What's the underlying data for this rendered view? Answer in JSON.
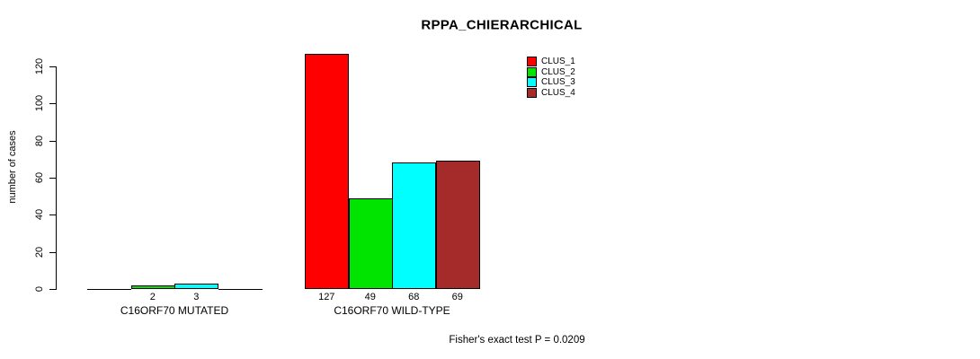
{
  "chart_data": {
    "type": "bar",
    "title": "RPPA_CHIERARCHICAL",
    "ylabel": "number of cases",
    "xlabel": "",
    "ylim": [
      0,
      130
    ],
    "yticks": [
      0,
      20,
      40,
      60,
      80,
      100,
      120
    ],
    "grid": false,
    "legend_position": "top-right",
    "categories": [
      "C16ORF70 MUTATED",
      "C16ORF70 WILD-TYPE"
    ],
    "series": [
      {
        "name": "CLUS_1",
        "color": "#ff0000",
        "values": [
          0,
          127
        ]
      },
      {
        "name": "CLUS_2",
        "color": "#00e400",
        "values": [
          2,
          49
        ]
      },
      {
        "name": "CLUS_3",
        "color": "#00ffff",
        "values": [
          3,
          68
        ]
      },
      {
        "name": "CLUS_4",
        "color": "#a52a2a",
        "values": [
          0,
          69
        ]
      }
    ],
    "annotation": "Fisher's exact test P = 0.0209"
  }
}
